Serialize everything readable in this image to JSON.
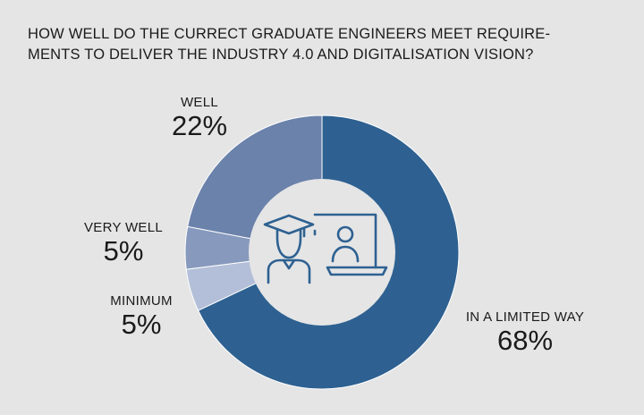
{
  "chart_data": {
    "type": "pie",
    "donut": true,
    "title": "HOW WELL DO THE CURRECT GRADUATE ENGINEERS MEET REQUIRE-\nMENTS TO DELIVER THE INDUSTRY 4.0 AND DIGITALISATION VISION?",
    "slices": [
      {
        "label": "IN A LIMITED WAY",
        "value": 68,
        "value_label": "68%",
        "color": "#2e6191"
      },
      {
        "label": "MINIMUM",
        "value": 5,
        "value_label": "5%",
        "color": "#b3bfd8"
      },
      {
        "label": "VERY WELL",
        "value": 5,
        "value_label": "5%",
        "color": "#8799bd"
      },
      {
        "label": "WELL",
        "value": 22,
        "value_label": "22%",
        "color": "#6b82ab"
      }
    ],
    "center_icon": "graduate-online-learning-icon",
    "icon_color": "#2e6191",
    "hole_color": "#e5e5e6"
  }
}
